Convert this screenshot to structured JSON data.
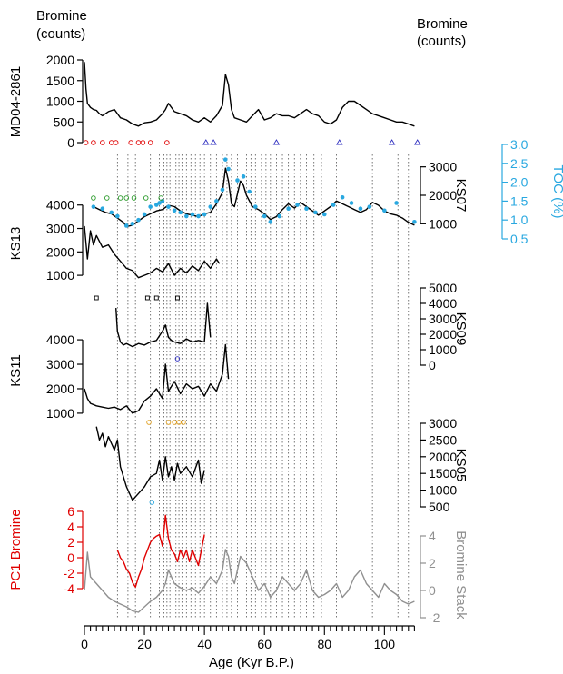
{
  "chart_data": {
    "type": "line",
    "x_axis": {
      "label": "Age (Kyr B.P.)",
      "range": [
        0,
        112
      ],
      "ticks": [
        0,
        20,
        40,
        60,
        80,
        100
      ],
      "tick_labels": [
        "0",
        "20",
        "40",
        "60",
        "80",
        "100"
      ]
    },
    "header_left": {
      "line1": "Bromine",
      "line2": "(counts)"
    },
    "header_right": {
      "line1": "Bromine",
      "line2": "(counts)"
    },
    "vertical_reference_lines": [
      11,
      14.5,
      17,
      22,
      25,
      26.5,
      27.5,
      28.5,
      29.5,
      30.5,
      31.5,
      32.5,
      34,
      35.5,
      37,
      38.5,
      40,
      42,
      44,
      46,
      47.5,
      49,
      51,
      52.5,
      54,
      55.5,
      57,
      59,
      60.5,
      62,
      64,
      66,
      68,
      70,
      72,
      74,
      76.5,
      79,
      84,
      96,
      104.5,
      108
    ],
    "panels": [
      {
        "name": "MD04-2861",
        "side": "left",
        "color": "#000000",
        "ylim": [
          0,
          2000
        ],
        "ticks": [
          0,
          500,
          1000,
          1500,
          2000
        ],
        "tick_labels": [
          "0",
          "500",
          "1000",
          "1500",
          "2000"
        ],
        "x": [
          0,
          0.5,
          1,
          2,
          3,
          4,
          5,
          6,
          8,
          10,
          12,
          14,
          16,
          18,
          20,
          22,
          24,
          26,
          27,
          28,
          30,
          32,
          34,
          36,
          38,
          40,
          42,
          44,
          46,
          47,
          48,
          49,
          50,
          52,
          54,
          56,
          58,
          60,
          62,
          64,
          66,
          68,
          70,
          72,
          74,
          76,
          78,
          80,
          82,
          84,
          86,
          88,
          90,
          92,
          94,
          96,
          98,
          100,
          102,
          104,
          106,
          108,
          110
        ],
        "values": [
          1950,
          1300,
          950,
          850,
          800,
          780,
          700,
          650,
          750,
          800,
          600,
          550,
          450,
          400,
          480,
          500,
          550,
          700,
          800,
          950,
          750,
          700,
          650,
          550,
          500,
          600,
          500,
          650,
          900,
          1650,
          1400,
          800,
          600,
          550,
          500,
          650,
          800,
          550,
          600,
          700,
          650,
          650,
          600,
          700,
          800,
          700,
          650,
          500,
          450,
          550,
          850,
          1000,
          1000,
          900,
          800,
          700,
          650,
          600,
          550,
          500,
          500,
          450,
          400
        ],
        "markers": [
          {
            "color": "#e00000",
            "shape": "circle",
            "x": [
              0.5,
              3,
              6,
              9,
              10.5,
              15.5,
              18,
              19.5,
              22,
              27.5
            ]
          },
          {
            "color": "#3030c0",
            "shape": "triangle",
            "x": [
              40.5,
              43,
              64,
              85,
              102.5,
              111
            ]
          }
        ]
      },
      {
        "name": "KS07",
        "side": "right",
        "color": "#000000",
        "ylim": [
          500,
          3500
        ],
        "ticks": [
          1000,
          2000,
          3000
        ],
        "tick_labels": [
          "1000",
          "2000",
          "3000"
        ],
        "x": [
          3,
          5,
          7,
          9,
          11,
          13,
          14,
          16,
          18,
          20,
          22,
          24,
          26,
          28,
          30,
          32,
          34,
          36,
          38,
          40,
          42,
          44,
          46,
          47,
          48,
          49,
          50,
          52,
          53,
          54,
          56,
          58,
          60,
          62,
          64,
          66,
          68,
          70,
          72,
          74,
          76,
          78,
          80,
          82,
          84,
          86,
          88,
          90,
          92,
          94,
          96,
          98,
          100,
          102,
          104,
          106,
          108,
          110
        ],
        "values": [
          1600,
          1500,
          1400,
          1350,
          1200,
          1050,
          900,
          950,
          1100,
          1250,
          1350,
          1450,
          1500,
          1650,
          1600,
          1450,
          1350,
          1300,
          1250,
          1350,
          1400,
          1700,
          2100,
          2950,
          2500,
          1700,
          1600,
          2500,
          2350,
          2000,
          1600,
          1500,
          1350,
          1150,
          1250,
          1500,
          1700,
          1550,
          1750,
          1600,
          1450,
          1300,
          1450,
          1600,
          1800,
          1700,
          1600,
          1500,
          1400,
          1500,
          1750,
          1650,
          1450,
          1350,
          1300,
          1200,
          1050,
          950
        ]
      },
      {
        "name": "TOC (%)",
        "side": "right-outer",
        "color": "#29a8e0",
        "ylim": [
          0.5,
          3.0
        ],
        "ticks": [
          0.5,
          1.0,
          1.5,
          2.0,
          2.5,
          3.0
        ],
        "tick_labels": [
          "0.5",
          "1.0",
          "1.5",
          "2.0",
          "2.5",
          "3.0"
        ],
        "x": [
          3,
          6,
          9,
          11,
          14,
          16,
          18,
          20,
          22,
          24,
          25,
          26,
          28,
          30,
          32,
          34,
          36,
          38,
          40,
          42,
          44,
          46,
          47,
          48,
          51,
          53,
          55,
          57,
          60,
          62,
          65,
          68,
          71,
          74,
          77,
          80,
          83,
          86,
          89,
          92,
          95,
          100,
          104,
          110
        ],
        "values": [
          1.35,
          1.3,
          1.2,
          1.1,
          0.85,
          0.9,
          1.0,
          1.15,
          1.35,
          1.4,
          1.45,
          1.5,
          1.35,
          1.25,
          1.2,
          1.1,
          1.15,
          1.1,
          1.15,
          1.35,
          1.5,
          1.8,
          2.6,
          2.35,
          2.05,
          2.15,
          1.75,
          1.35,
          1.1,
          0.95,
          1.1,
          1.3,
          1.4,
          1.3,
          1.2,
          1.15,
          1.4,
          1.6,
          1.45,
          1.3,
          1.35,
          1.25,
          1.45,
          0.95
        ]
      },
      {
        "name": "KS13",
        "side": "left",
        "color": "#000000",
        "ylim": [
          500,
          4300
        ],
        "ticks": [
          1000,
          2000,
          3000,
          4000
        ],
        "tick_labels": [
          "1000",
          "2000",
          "3000",
          "4000"
        ],
        "x": [
          0,
          1,
          2,
          3,
          4,
          6,
          8,
          10,
          12,
          14,
          16,
          18,
          20,
          22,
          24,
          26,
          28,
          30,
          32,
          34,
          36,
          38,
          40,
          42,
          44,
          45
        ],
        "values": [
          3100,
          1700,
          2900,
          2300,
          2700,
          2200,
          2300,
          1900,
          1600,
          1300,
          1200,
          900,
          1000,
          1100,
          1300,
          1150,
          1500,
          1000,
          1300,
          1100,
          1400,
          1200,
          1600,
          1300,
          1700,
          1500
        ],
        "markers": [
          {
            "color": "#2a9a2a",
            "shape": "circle",
            "x": [
              3,
              7.5,
              12,
              14,
              16.5,
              20.5,
              25.5
            ]
          }
        ]
      },
      {
        "name": "KS09",
        "side": "right",
        "color": "#000000",
        "ylim": [
          0,
          5000
        ],
        "ticks": [
          0,
          1000,
          2000,
          3000,
          4000,
          5000
        ],
        "tick_labels": [
          "0",
          "1000",
          "2000",
          "3000",
          "4000",
          "5000"
        ],
        "x": [
          10.5,
          11,
          12,
          13,
          14,
          16,
          18,
          20,
          22,
          24,
          26,
          27,
          28,
          29,
          30,
          32,
          34,
          36,
          38,
          40,
          41,
          42
        ],
        "values": [
          3700,
          2200,
          1500,
          1300,
          1400,
          1200,
          1400,
          1300,
          1500,
          1600,
          2200,
          2600,
          1800,
          1600,
          1500,
          1400,
          1700,
          1500,
          1600,
          1500,
          4000,
          1800
        ],
        "markers": [
          {
            "color": "#000000",
            "shape": "square",
            "x": [
              4,
              21,
              24,
              31
            ]
          }
        ]
      },
      {
        "name": "KS11",
        "side": "left",
        "color": "#000000",
        "ylim": [
          700,
          4300
        ],
        "ticks": [
          1000,
          2000,
          3000,
          4000
        ],
        "tick_labels": [
          "1000",
          "2000",
          "3000",
          "4000"
        ],
        "x": [
          0,
          1,
          2,
          4,
          6,
          8,
          10,
          12,
          14,
          16,
          18,
          20,
          22,
          24,
          26,
          27,
          28,
          30,
          32,
          34,
          36,
          38,
          40,
          42,
          44,
          46,
          47,
          48
        ],
        "values": [
          2000,
          1600,
          1400,
          1300,
          1250,
          1200,
          1250,
          1150,
          1300,
          1000,
          1100,
          1500,
          1700,
          2000,
          1600,
          3000,
          1900,
          2300,
          1800,
          2200,
          2000,
          2100,
          1700,
          2200,
          1900,
          2600,
          3800,
          2400
        ],
        "markers": [
          {
            "color": "#3030c0",
            "shape": "circle",
            "x": [
              31
            ]
          }
        ]
      },
      {
        "name": "KS05",
        "side": "right",
        "color": "#000000",
        "ylim": [
          500,
          3000
        ],
        "ticks": [
          500,
          1000,
          1500,
          2000,
          2500,
          3000
        ],
        "tick_labels": [
          "500",
          "1000",
          "1500",
          "2000",
          "2500",
          "3000"
        ],
        "x": [
          4,
          5,
          6,
          7,
          8,
          9,
          10,
          11,
          12,
          14,
          16,
          18,
          20,
          22,
          24,
          25,
          26,
          27,
          28,
          29,
          30,
          31,
          32,
          34,
          36,
          38,
          39,
          40
        ],
        "values": [
          2900,
          2500,
          2700,
          2300,
          2600,
          2400,
          2200,
          2500,
          1700,
          1100,
          700,
          900,
          1100,
          1400,
          1500,
          1900,
          1300,
          2000,
          1400,
          1700,
          1300,
          1800,
          1500,
          1700,
          1400,
          1900,
          1200,
          1600
        ],
        "markers": [
          {
            "color": "#e0a020",
            "shape": "circle",
            "x": [
              21.5,
              28,
              30,
              31.5,
              33
            ]
          },
          {
            "color": "#29a8e0",
            "shape": "circle",
            "x": [
              22.5
            ]
          }
        ]
      },
      {
        "name": "PC1 Bromine",
        "side": "left",
        "color": "#e00000",
        "ylim": [
          -4,
          6
        ],
        "ticks": [
          -4,
          -2,
          0,
          2,
          4,
          6
        ],
        "tick_labels": [
          "-4",
          "-2",
          "0",
          "2",
          "4",
          "6"
        ],
        "x": [
          11,
          12,
          13,
          14,
          15,
          16,
          17,
          18,
          19,
          20,
          21,
          22,
          23,
          24,
          25,
          26,
          27,
          28,
          29,
          30,
          31,
          32,
          33,
          34,
          35,
          36,
          37,
          38,
          39,
          40
        ],
        "values": [
          1.0,
          0.0,
          -0.5,
          -1.5,
          -2.0,
          -3.2,
          -3.8,
          -2.5,
          -1.5,
          0.0,
          1.0,
          2.0,
          2.5,
          2.8,
          3.0,
          1.5,
          5.5,
          2.5,
          1.0,
          0.5,
          -0.5,
          1.0,
          0.0,
          1.0,
          -0.5,
          1.0,
          0.0,
          -1.0,
          1.0,
          3.0
        ]
      },
      {
        "name": "Bromine Stack",
        "side": "right",
        "color": "#909090",
        "ylim": [
          -2,
          4
        ],
        "ticks": [
          -2,
          0,
          2,
          4
        ],
        "tick_labels": [
          "-2",
          "0",
          "2",
          "4"
        ],
        "x": [
          0,
          1,
          2,
          4,
          6,
          8,
          10,
          12,
          14,
          16,
          18,
          20,
          22,
          24,
          26,
          27,
          28,
          30,
          32,
          34,
          36,
          38,
          40,
          42,
          44,
          46,
          47,
          48,
          49,
          50,
          52,
          54,
          56,
          58,
          60,
          62,
          64,
          66,
          68,
          70,
          72,
          74,
          76,
          78,
          80,
          82,
          84,
          86,
          88,
          90,
          92,
          94,
          96,
          98,
          100,
          102,
          104,
          106,
          108,
          110
        ],
        "values": [
          0.0,
          2.8,
          1.0,
          0.5,
          0.0,
          -0.5,
          -0.8,
          -1.0,
          -1.2,
          -1.5,
          -1.6,
          -1.2,
          -0.8,
          -0.5,
          0.0,
          0.5,
          1.5,
          0.5,
          0.2,
          0.0,
          0.2,
          -0.2,
          0.3,
          1.0,
          0.5,
          1.5,
          3.0,
          2.5,
          1.0,
          0.5,
          2.5,
          2.0,
          1.0,
          0.0,
          0.5,
          -0.5,
          0.0,
          1.0,
          0.5,
          0.0,
          0.5,
          1.5,
          0.0,
          -0.5,
          -0.3,
          0.0,
          0.5,
          -0.5,
          0.0,
          1.0,
          1.5,
          0.5,
          0.0,
          -0.5,
          0.5,
          0.0,
          -0.3,
          -0.8,
          -1.0,
          -0.8
        ]
      }
    ]
  }
}
